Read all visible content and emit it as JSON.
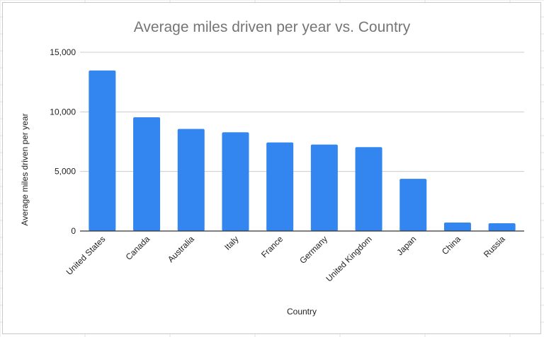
{
  "colors": {
    "bar": "#3385f0",
    "grid": "#cccccc",
    "axis": "#333333",
    "title": "#757575"
  },
  "chart_data": {
    "type": "bar",
    "title": "Average miles driven per year vs. Country",
    "xlabel": "Country",
    "ylabel": "Average miles driven per year",
    "ylim": [
      0,
      15000
    ],
    "yticks": [
      0,
      5000,
      10000,
      15000
    ],
    "ytick_labels": [
      "0",
      "5,000",
      "10,000",
      "15,000"
    ],
    "grid": true,
    "legend": "none",
    "categories": [
      "United States",
      "Canada",
      "Australia",
      "Italy",
      "France",
      "Germany",
      "United Kingdom",
      "Japan",
      "China",
      "Russia"
    ],
    "values": [
      13476,
      9544,
      8566,
      8283,
      7434,
      7253,
      7043,
      4380,
      710,
      650
    ]
  }
}
